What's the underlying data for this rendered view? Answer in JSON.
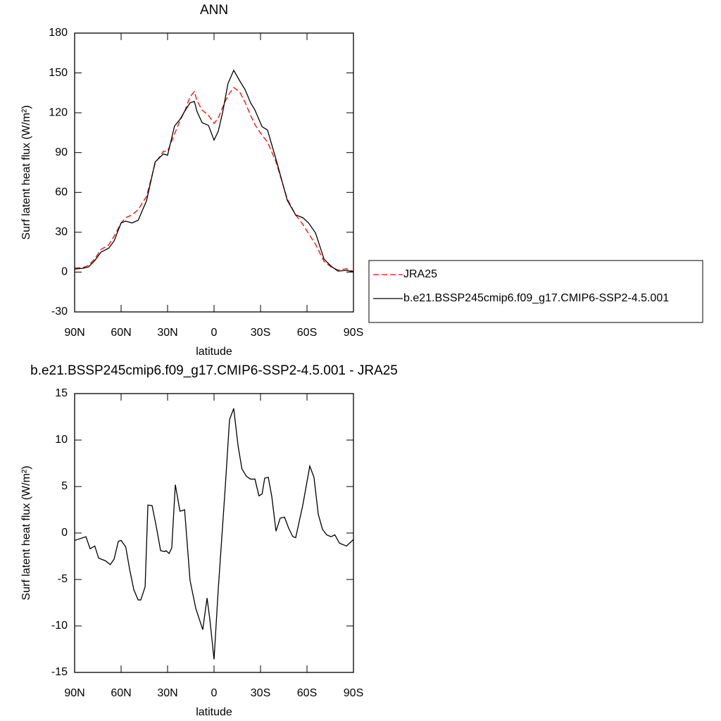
{
  "chart_data": [
    {
      "type": "line",
      "title": "ANN",
      "xlabel": "latitude",
      "ylabel": "Surf latent heat flux (W/m²)",
      "x": [
        90,
        84.5,
        81,
        77,
        73,
        68,
        64.5,
        60,
        57,
        53,
        49,
        43.6,
        38,
        32.7,
        30,
        25.5,
        22,
        19,
        15.5,
        12.7,
        11,
        7.7,
        3.6,
        0,
        -2.7,
        -5.5,
        -9,
        -12.7,
        -16.4,
        -20,
        -23.6,
        -26.4,
        -31,
        -34.5,
        -40,
        -47.3,
        -52.7,
        -57.3,
        -61,
        -65.5,
        -71,
        -75.5,
        -80,
        -85.5,
        -90
      ],
      "series": [
        {
          "name": "JRA25",
          "color": "#ff0000",
          "linestyle": "dashed",
          "values": [
            3,
            3.5,
            5,
            10,
            17,
            20.5,
            27,
            37,
            41,
            43,
            47,
            57,
            82,
            91,
            91,
            104,
            114,
            121,
            132,
            136,
            129,
            122,
            118,
            112,
            116,
            124,
            133,
            139,
            136,
            128,
            118,
            111,
            103,
            98,
            83,
            55,
            43,
            36,
            29,
            21,
            8,
            4,
            1.5,
            2.5,
            0.5
          ]
        },
        {
          "name": "b.e21.BSSP245cmip6.f09_g17.CMIP6-SSP2-4.5.001",
          "color": "#000000",
          "linestyle": "solid",
          "values": [
            2.3,
            2.9,
            3.9,
            8.7,
            15,
            18,
            23.5,
            37,
            38.4,
            37,
            39,
            53.7,
            83,
            89,
            88,
            110,
            115,
            121,
            127.5,
            128.5,
            121,
            112.5,
            110.5,
            99.4,
            106,
            120,
            142,
            152,
            144.4,
            137.5,
            127.5,
            122,
            109.5,
            107,
            85,
            54,
            43,
            41,
            37,
            29.5,
            9.8,
            4.5,
            0.7,
            1.3,
            0.2
          ]
        }
      ],
      "xlim": [
        90,
        -90
      ],
      "xticks": [
        {
          "value": 90,
          "label": "90N"
        },
        {
          "value": 60,
          "label": "60N"
        },
        {
          "value": 30,
          "label": "30N"
        },
        0,
        {
          "value": -30,
          "label": "30S"
        },
        {
          "value": -60,
          "label": "60S"
        },
        {
          "value": -90,
          "label": "90S"
        }
      ],
      "ylim": [
        -30,
        180
      ],
      "yticks": [
        -30,
        0,
        30,
        60,
        90,
        120,
        150,
        180
      ],
      "legend": "right"
    },
    {
      "type": "line",
      "title": "b.e21.BSSP245cmip6.f09_g17.CMIP6-SSP2-4.5.001 - JRA25",
      "xlabel": "latitude",
      "ylabel": "Surf latent heat flux (W/m²)",
      "x": [
        90,
        82.7,
        80,
        77,
        74.5,
        70,
        67,
        64.5,
        61.8,
        60,
        57,
        54.5,
        51.8,
        49,
        47.3,
        44.5,
        42.7,
        40,
        37.3,
        34.5,
        31.8,
        31,
        29,
        27.3,
        25,
        22,
        19,
        15.5,
        11.8,
        7.3,
        4.5,
        2.7,
        0,
        -2.7,
        -7.3,
        -10,
        -12.7,
        -15.5,
        -18,
        -20.9,
        -23.6,
        -26.4,
        -29,
        -31,
        -32.7,
        -35,
        -37.3,
        -40,
        -42.7,
        -45.5,
        -48.2,
        -50.9,
        -52.7,
        -57.3,
        -61.8,
        -64.5,
        -67.3,
        -70,
        -72.7,
        -75.5,
        -78,
        -81,
        -85.5,
        -90
      ],
      "series": [
        {
          "color": "#000000",
          "linestyle": "solid",
          "values": [
            -0.8,
            -0.4,
            -1.7,
            -1.4,
            -2.7,
            -3.0,
            -3.4,
            -2.8,
            -0.9,
            -0.8,
            -1.5,
            -3.9,
            -6.1,
            -7.2,
            -7.2,
            -5.8,
            3.0,
            2.95,
            0.7,
            -1.9,
            -2.0,
            -1.9,
            -2.2,
            -1.6,
            5.2,
            2.35,
            2.5,
            -5.1,
            -8.1,
            -10.4,
            -7.0,
            -9.3,
            -13.6,
            -6.1,
            5.1,
            12.2,
            13.4,
            9.4,
            6.9,
            6.1,
            5.8,
            5.8,
            4.0,
            4.2,
            5.9,
            6.0,
            3.9,
            0.2,
            1.6,
            1.7,
            0.5,
            -0.4,
            -0.5,
            3.0,
            7.2,
            6.0,
            2.0,
            0.4,
            -0.2,
            -0.4,
            -0.2,
            -1.1,
            -1.4,
            -0.7
          ]
        }
      ],
      "xlim": [
        90,
        -90
      ],
      "xticks": [
        {
          "value": 90,
          "label": "90N"
        },
        {
          "value": 60,
          "label": "60N"
        },
        {
          "value": 30,
          "label": "30N"
        },
        0,
        {
          "value": -30,
          "label": "30S"
        },
        {
          "value": -60,
          "label": "60S"
        },
        {
          "value": -90,
          "label": "90S"
        }
      ],
      "ylim": [
        -15,
        15
      ],
      "yticks": [
        -15,
        -10,
        -5,
        0,
        5,
        10,
        15
      ]
    }
  ]
}
